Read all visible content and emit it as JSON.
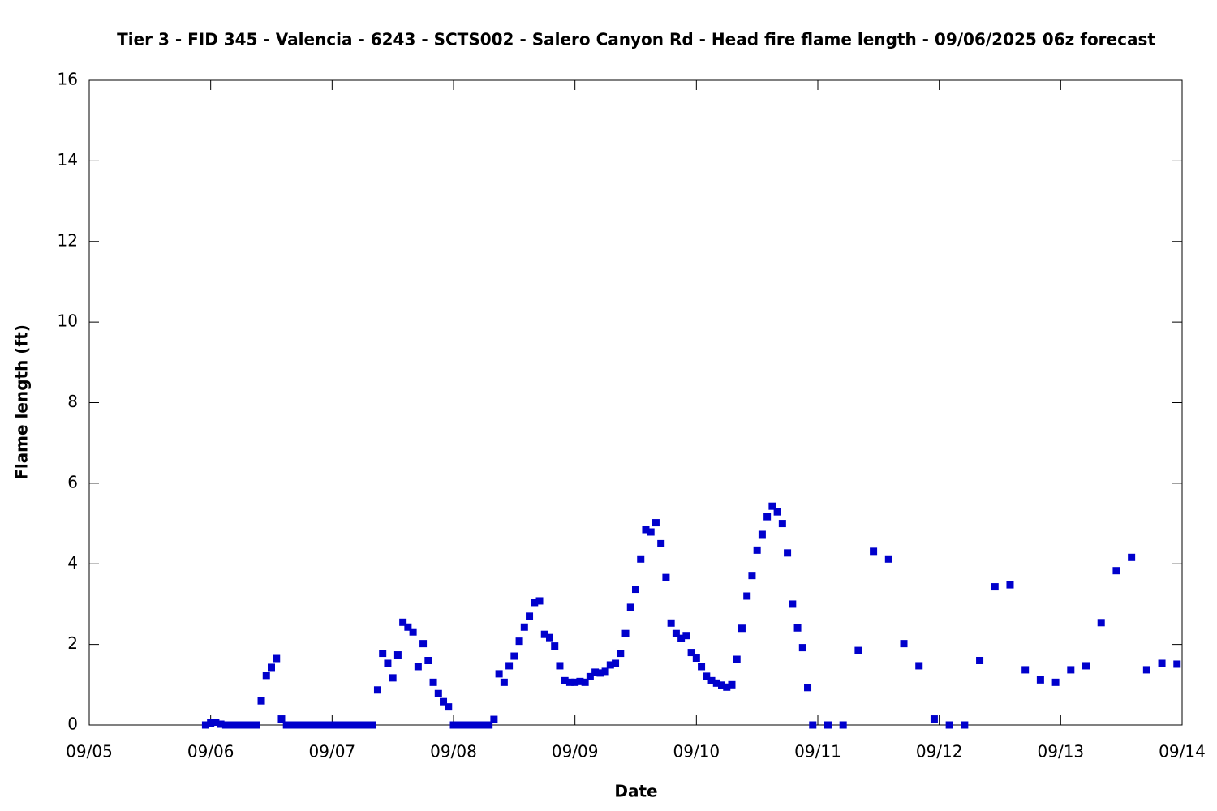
{
  "chart_data": {
    "type": "scatter",
    "title": "Tier 3 - FID 345 - Valencia - 6243 - SCTS002 - Salero Canyon Rd - Head fire flame length - 09/06/2025 06z forecast",
    "x_label": "Date",
    "y_label": "Flame length (ft)",
    "xlim": [
      0,
      216
    ],
    "ylim": [
      0,
      16
    ],
    "xticks": [
      {
        "value": 0,
        "label": "09/05"
      },
      {
        "value": 24,
        "label": "09/06"
      },
      {
        "value": 48,
        "label": "09/07"
      },
      {
        "value": 72,
        "label": "09/08"
      },
      {
        "value": 96,
        "label": "09/09"
      },
      {
        "value": 120,
        "label": "09/10"
      },
      {
        "value": 144,
        "label": "09/11"
      },
      {
        "value": 168,
        "label": "09/12"
      },
      {
        "value": 192,
        "label": "09/13"
      },
      {
        "value": 216,
        "label": "09/14"
      }
    ],
    "yticks": [
      0,
      2,
      4,
      6,
      8,
      10,
      12,
      14,
      16
    ],
    "grid": false,
    "color": "#0000cc",
    "x": [
      23,
      24,
      25,
      26,
      27,
      28,
      29,
      30,
      31,
      32,
      33,
      34,
      35,
      36,
      37,
      38,
      39,
      40,
      41,
      42,
      43,
      44,
      45,
      46,
      47,
      48,
      49,
      50,
      51,
      52,
      53,
      54,
      55,
      56,
      57,
      58,
      59,
      60,
      61,
      62,
      63,
      64,
      65,
      66,
      67,
      68,
      69,
      70,
      71,
      72,
      73,
      74,
      75,
      76,
      77,
      78,
      79,
      80,
      81,
      82,
      83,
      84,
      85,
      86,
      87,
      88,
      89,
      90,
      91,
      92,
      93,
      94,
      95,
      96,
      97,
      98,
      99,
      100,
      101,
      102,
      103,
      104,
      105,
      106,
      107,
      108,
      109,
      110,
      111,
      112,
      113,
      114,
      115,
      116,
      117,
      118,
      119,
      120,
      121,
      122,
      123,
      124,
      125,
      126,
      127,
      128,
      129,
      130,
      131,
      132,
      133,
      134,
      135,
      136,
      137,
      138,
      139,
      140,
      141,
      142,
      143,
      146,
      149,
      152,
      155,
      158,
      161,
      164,
      167,
      170,
      173,
      176,
      179,
      182,
      185,
      188,
      191,
      194,
      197,
      200,
      203,
      206,
      209,
      212,
      215
    ],
    "values": [
      0,
      0.05,
      0.07,
      0.02,
      0,
      0,
      0,
      0,
      0,
      0,
      0,
      0.6,
      1.23,
      1.43,
      1.65,
      0.15,
      0,
      0,
      0,
      0,
      0,
      0,
      0,
      0,
      0,
      0,
      0,
      0,
      0,
      0,
      0,
      0,
      0,
      0,
      0.87,
      1.78,
      1.53,
      1.17,
      1.74,
      2.55,
      2.43,
      2.31,
      1.45,
      2.02,
      1.6,
      1.06,
      0.78,
      0.58,
      0.45,
      0,
      0,
      0,
      0,
      0,
      0,
      0,
      0,
      0.14,
      1.27,
      1.06,
      1.47,
      1.71,
      2.08,
      2.43,
      2.7,
      3.04,
      3.08,
      2.25,
      2.17,
      1.96,
      1.47,
      1.1,
      1.06,
      1.06,
      1.08,
      1.06,
      1.2,
      1.31,
      1.29,
      1.33,
      1.49,
      1.53,
      1.78,
      2.27,
      2.92,
      3.37,
      4.12,
      4.85,
      4.79,
      5.02,
      4.5,
      3.66,
      2.53,
      2.27,
      2.15,
      2.22,
      1.8,
      1.66,
      1.45,
      1.21,
      1.1,
      1.04,
      0.99,
      0.94,
      1.0,
      1.63,
      2.4,
      3.2,
      3.71,
      4.34,
      4.73,
      5.17,
      5.43,
      5.29,
      5.0,
      4.27,
      3.0,
      2.41,
      1.92,
      0.93,
      0,
      0,
      0,
      1.85,
      4.31,
      4.12,
      2.02,
      1.47,
      0.15,
      0,
      0,
      1.6,
      3.43,
      3.48,
      1.37,
      1.12,
      1.06,
      1.37,
      1.47,
      2.54,
      3.83,
      4.16,
      1.37,
      1.53,
      1.51
    ]
  }
}
